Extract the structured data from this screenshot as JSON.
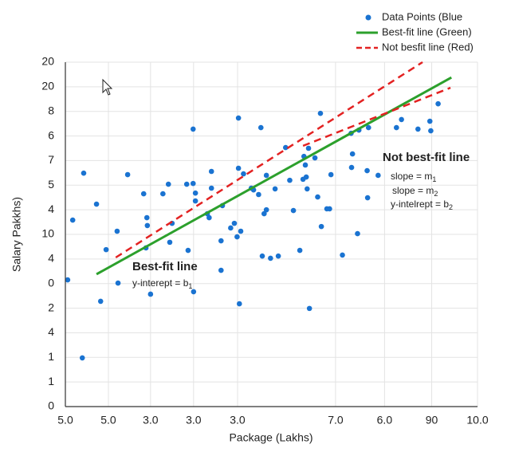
{
  "chart_data": {
    "type": "scatter",
    "x_label": "Package (Lakhs)",
    "y_label": "Salary Pakkhs)",
    "xlim": [
      0,
      9
    ],
    "ylim": [
      0,
      14
    ],
    "xticks": [
      {
        "value": 0,
        "label": "5.0"
      },
      {
        "value": 0.94,
        "label": "5.0"
      },
      {
        "value": 1.86,
        "label": "3.0"
      },
      {
        "value": 2.8,
        "label": "3.0"
      },
      {
        "value": 3.76,
        "label": "3.0"
      },
      {
        "value": 5.9,
        "label": "7.0"
      },
      {
        "value": 6.97,
        "label": "6.0"
      },
      {
        "value": 8.0,
        "label": "90"
      },
      {
        "value": 9.0,
        "label": "10.0"
      }
    ],
    "yticks": [
      0,
      1,
      {
        "value": 2,
        "label": "1"
      },
      {
        "value": 3,
        "label": "4"
      },
      {
        "value": 4,
        "label": "2"
      },
      {
        "value": 5,
        "label": "0"
      },
      {
        "value": 6,
        "label": "4"
      },
      {
        "value": 7,
        "label": "10"
      },
      {
        "value": 8,
        "label": "4"
      },
      {
        "value": 9,
        "label": "5"
      },
      {
        "value": 10,
        "label": "7"
      },
      {
        "value": 11,
        "label": "6"
      },
      {
        "value": 12,
        "label": "8"
      },
      {
        "value": 13,
        "label": "20"
      },
      {
        "value": 14,
        "label": "20"
      }
    ],
    "grid": true,
    "series": [
      {
        "name": "Data Points (Blue",
        "color": "#1a73d1",
        "kind": "points",
        "x": [
          0.05,
          0.16,
          0.4,
          0.37,
          0.68,
          0.77,
          0.89,
          1.13,
          1.15,
          1.36,
          1.71,
          1.78,
          1.79,
          1.76,
          1.86,
          2.13,
          2.25,
          2.28,
          2.33,
          2.65,
          2.68,
          2.79,
          2.8,
          2.79,
          2.84,
          2.84,
          3.1,
          3.14,
          3.19,
          3.19,
          3.4,
          3.4,
          3.43,
          3.61,
          3.69,
          3.75,
          3.78,
          3.8,
          3.78,
          3.83,
          3.89,
          4.06,
          4.11,
          4.22,
          4.27,
          4.3,
          4.34,
          4.39,
          4.39,
          4.48,
          4.65,
          4.58,
          4.81,
          4.9,
          4.98,
          5.12,
          5.19,
          5.21,
          5.24,
          5.28,
          5.26,
          5.31,
          5.33,
          5.45,
          5.51,
          5.59,
          5.57,
          5.71,
          5.77,
          5.8,
          6.05,
          6.24,
          6.25,
          6.27,
          6.38,
          6.41,
          6.59,
          6.6,
          6.62,
          6.83,
          7.23,
          7.34,
          7.7,
          7.96,
          7.98,
          8.14
        ],
        "values": [
          5.15,
          7.58,
          9.49,
          1.98,
          8.23,
          4.28,
          6.38,
          7.13,
          5.02,
          9.43,
          8.65,
          7.68,
          7.36,
          6.45,
          4.57,
          8.65,
          9.04,
          6.68,
          7.45,
          9.04,
          6.35,
          11.28,
          4.67,
          9.07,
          8.68,
          8.36,
          7.84,
          7.68,
          9.56,
          8.88,
          6.74,
          5.54,
          8.17,
          7.26,
          7.45,
          6.9,
          11.73,
          4.18,
          9.69,
          7.13,
          9.46,
          8.88,
          8.81,
          8.62,
          11.34,
          6.12,
          7.84,
          8.0,
          9.4,
          6.03,
          6.12,
          8.85,
          10.53,
          9.2,
          7.97,
          6.35,
          9.24,
          10.17,
          9.82,
          8.85,
          9.33,
          10.5,
          3.99,
          10.11,
          8.52,
          7.32,
          11.92,
          8.04,
          8.04,
          9.43,
          6.16,
          11.11,
          9.72,
          10.27,
          7.03,
          11.24,
          9.59,
          8.49,
          11.34,
          9.4,
          11.34,
          11.67,
          11.28,
          11.6,
          11.21,
          12.31
        ]
      },
      {
        "name": "Best-fit line (Green)",
        "color": "#2ca02c",
        "kind": "line",
        "x": [
          0.68,
          8.43
        ],
        "values": [
          5.38,
          13.38
        ]
      },
      {
        "name": "Not besfit line (Red)",
        "color": "#e32222",
        "kind": "dashed",
        "x": [
          1.1,
          7.8
        ],
        "values": [
          6.06,
          14.0
        ]
      },
      {
        "color": "#e32222",
        "kind": "dashed",
        "x": [
          5.19,
          8.41
        ],
        "values": [
          10.6,
          12.96
        ]
      }
    ],
    "annotations": [
      {
        "text": "Best-fit line",
        "color": "#2ca02c",
        "bold": true
      },
      {
        "text": "y-interept = b",
        "sub": "1"
      },
      {
        "text": "Not best-fit line",
        "color": "#e32222",
        "bold": true
      },
      {
        "text": "slope = m",
        "sub": "1"
      },
      {
        "text": "slope = m",
        "sub": "2"
      },
      {
        "text": "y-intelrept = b",
        "sub": "2"
      }
    ]
  }
}
